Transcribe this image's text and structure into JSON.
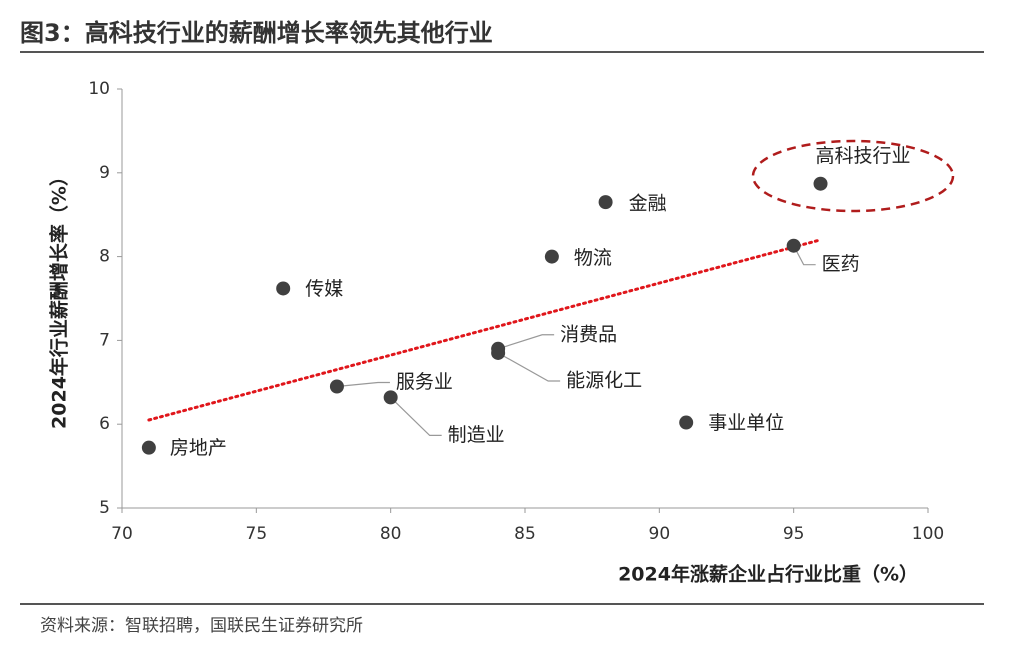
{
  "chart_data": {
    "type": "scatter",
    "title": "图3：高科技行业的薪酬增长率领先其他行业",
    "x_label": "2024年涨薪企业占行业比重（%）",
    "y_label": "2024年行业薪酬增长率（%）",
    "source": "资料来源：智联招聘，国联民生证券研究所",
    "series": [
      {
        "color": "#404040",
        "labels": [
          "高科技行业",
          "金融",
          "医药",
          "物流",
          "传媒",
          "消费品",
          "能源化工",
          "服务业",
          "制造业",
          "事业单位",
          "房地产"
        ],
        "x": [
          96,
          88,
          95,
          86,
          76,
          84,
          84,
          78,
          80,
          91,
          71
        ],
        "values": [
          8.87,
          8.65,
          8.13,
          8.0,
          7.62,
          6.9,
          6.85,
          6.45,
          6.32,
          6.02,
          5.72
        ]
      }
    ],
    "trendline": {
      "color": "#e0161b",
      "x": [
        71,
        96
      ],
      "values": [
        6.05,
        8.2
      ]
    },
    "xlim": [
      70,
      100
    ],
    "xticks": [
      70,
      75,
      80,
      85,
      90,
      95,
      100
    ],
    "ylim": [
      5,
      10
    ],
    "yticks": [
      5,
      6,
      7,
      8,
      9,
      10
    ]
  }
}
